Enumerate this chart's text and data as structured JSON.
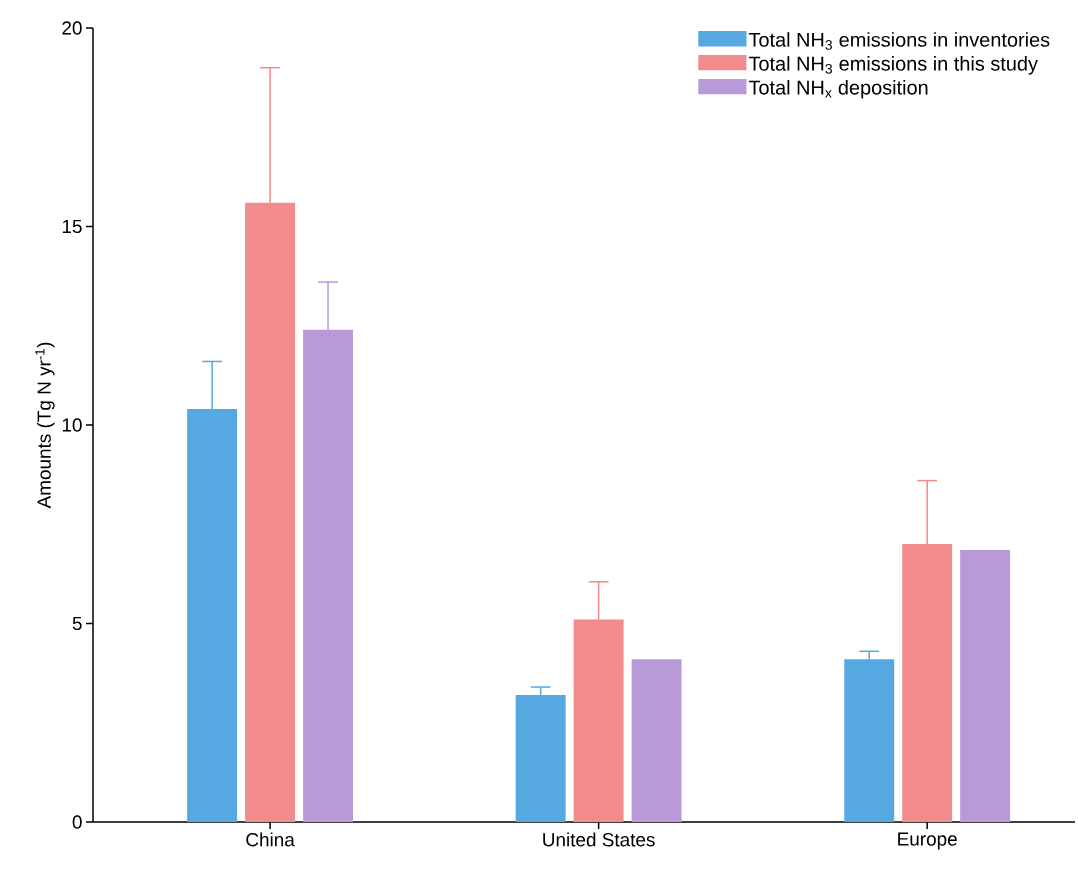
{
  "chart_data": {
    "type": "bar",
    "ylabel": "Amounts (Tg N yr$^{-1}$)",
    "categories": [
      "China",
      "United States",
      "Europe"
    ],
    "series": [
      {
        "name": "Total NH$_{3}$ emissions in inventories",
        "color": "#55a8e0",
        "values": [
          10.4,
          3.2,
          4.1
        ],
        "errors": [
          1.2,
          0.2,
          0.2
        ]
      },
      {
        "name": "Total NH$_{3}$ emissions in this study",
        "color": "#f28b8b",
        "values": [
          15.6,
          5.1,
          7.0
        ],
        "errors": [
          3.4,
          0.95,
          1.6
        ]
      },
      {
        "name": "Total NH$_{x}$ deposition",
        "color": "#b89ad8",
        "values": [
          12.4,
          4.1,
          6.85
        ],
        "errors": [
          1.2,
          null,
          null
        ]
      }
    ],
    "ylim": [
      0,
      20
    ],
    "yticks": [
      0,
      5,
      10,
      15,
      20
    ],
    "legend": "top right"
  }
}
